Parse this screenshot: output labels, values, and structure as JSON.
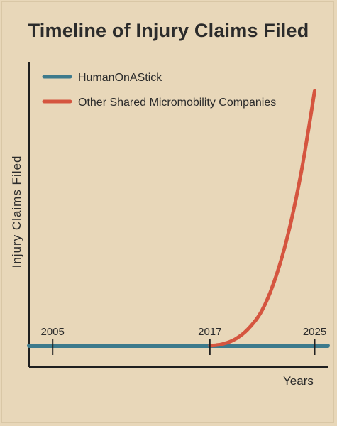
{
  "chart_data": {
    "type": "line",
    "title": "Timeline of Injury Claims Filed",
    "xlabel": "Years",
    "ylabel": "Injury Claims Filed",
    "x_ticks": [
      2005,
      2017,
      2025
    ],
    "xlim": [
      2003.2,
      2026.0
    ],
    "ylim": [
      0,
      100
    ],
    "grid": false,
    "legend_position": "top-left",
    "series": [
      {
        "name": "HumanOnAStick",
        "color": "#3d7a8c",
        "x": [
          2003.2,
          2026.0
        ],
        "y": [
          0,
          0
        ]
      },
      {
        "name": "Other Shared Micromobility Companies",
        "color": "#d5553f",
        "x": [
          2017,
          2018,
          2019,
          2020,
          2021,
          2022,
          2023,
          2024,
          2025
        ],
        "y": [
          0,
          0.6,
          2.3,
          5.8,
          11.6,
          21.8,
          36.6,
          56.7,
          82.3
        ]
      }
    ]
  }
}
